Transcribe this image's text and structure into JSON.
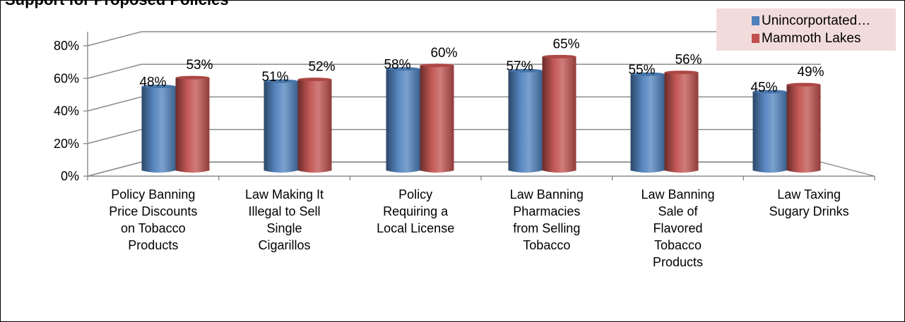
{
  "chart_data": {
    "type": "bar",
    "title": "Support for Proposed Policies",
    "categories": [
      [
        "Policy Banning",
        "Price Discounts",
        "on Tobacco",
        "Products"
      ],
      [
        "Law Making It",
        "Illegal to Sell",
        "Single",
        "Cigarillos"
      ],
      [
        "Policy",
        "Requiring a",
        "Local License"
      ],
      [
        "Law Banning",
        "Pharmacies",
        "from Selling",
        "Tobacco"
      ],
      [
        "Law Banning",
        "Sale of",
        "Flavored",
        "Tobacco",
        "Products"
      ],
      [
        "Law Taxing",
        "Sugary Drinks"
      ]
    ],
    "series": [
      {
        "name": "Unincorportated…",
        "color": "#4f81bd",
        "values": [
          48,
          51,
          58,
          57,
          55,
          45
        ]
      },
      {
        "name": "Mammoth Lakes",
        "color": "#c0504d",
        "values": [
          53,
          52,
          60,
          65,
          56,
          49
        ]
      }
    ],
    "ylim": [
      0,
      80
    ],
    "yticks": [
      "0%",
      "20%",
      "40%",
      "60%",
      "80%"
    ],
    "value_suffix": "%",
    "grid": true,
    "legend_position": "top-right"
  }
}
